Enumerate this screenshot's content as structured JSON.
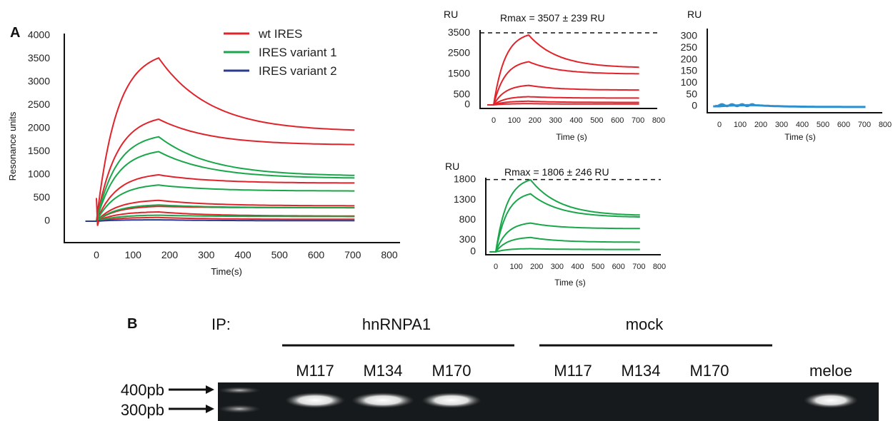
{
  "panel_a": {
    "label": "A",
    "main": {
      "ylabel": "Resonance units",
      "xlabel": "Time(s)",
      "yticks": [
        0,
        500,
        1000,
        1500,
        2000,
        2500,
        3000,
        3500,
        4000
      ],
      "xticks": [
        0,
        100,
        200,
        300,
        400,
        500,
        600,
        700,
        800
      ],
      "legend": [
        {
          "name": "wt IRES",
          "color": "#e0242b"
        },
        {
          "name": "IRES variant 1",
          "color": "#1aa64a"
        },
        {
          "name": "IRES variant 2",
          "color": "#2a3a8f"
        }
      ]
    },
    "inset_wt": {
      "ylabel": "RU",
      "xlabel": "Time (s)",
      "rmax_label": "Rmax = 3507 ± 239 RU",
      "yticks": [
        0,
        500,
        1500,
        2500,
        3500
      ],
      "xticks": [
        0,
        100,
        200,
        300,
        400,
        500,
        600,
        700,
        800
      ]
    },
    "inset_v1": {
      "ylabel": "RU",
      "xlabel": "Time (s)",
      "rmax_label": "Rmax = 1806 ± 246 RU",
      "yticks": [
        0,
        300,
        800,
        1300,
        1800
      ],
      "xticks": [
        0,
        100,
        200,
        300,
        400,
        500,
        600,
        700,
        800
      ]
    },
    "inset_v2": {
      "ylabel": "RU",
      "xlabel": "Time (s)",
      "yticks": [
        0,
        50,
        100,
        150,
        200,
        250,
        300
      ],
      "xticks": [
        0,
        100,
        200,
        300,
        400,
        500,
        600,
        700,
        800
      ]
    }
  },
  "panel_b": {
    "label": "B",
    "ip_label": "IP:",
    "group1": "hnRNPA1",
    "group2": "mock",
    "lanes": [
      "M117",
      "M134",
      "M170",
      "M117",
      "M134",
      "M170",
      "meloe"
    ],
    "markers": [
      "400pb",
      "300pb"
    ]
  },
  "chart_data": [
    {
      "type": "line",
      "title": "",
      "xlabel": "Time(s)",
      "ylabel": "Resonance units",
      "xlim": [
        -50,
        800
      ],
      "ylim": [
        -300,
        4000
      ],
      "inject_end": 170,
      "series_note": "association to t=170 s then dissociation to t=710 s",
      "series": [
        {
          "name": "wt IRES",
          "color": "#e0242b",
          "peaks": [
            3520,
            2200,
            1000,
            450,
            320,
            200,
            80
          ],
          "ends": [
            1930,
            1640,
            820,
            330,
            290,
            110,
            40
          ]
        },
        {
          "name": "IRES variant 1",
          "color": "#1aa64a",
          "peaks": [
            1820,
            1500,
            780,
            350,
            130
          ],
          "ends": [
            970,
            920,
            650,
            290,
            100
          ]
        },
        {
          "name": "IRES variant 2",
          "color": "#2a3a8f",
          "peaks": [
            30
          ],
          "ends": [
            10
          ]
        }
      ]
    },
    {
      "type": "line",
      "title": "Rmax = 3507 ± 239 RU",
      "xlabel": "Time (s)",
      "ylabel": "RU",
      "xlim": [
        -50,
        800
      ],
      "ylim": [
        -100,
        4000
      ],
      "rmax": 3507,
      "series": [
        {
          "name": "",
          "color": "#e0242b",
          "peaks": [
            3400,
            2100,
            950,
            400,
            180,
            60
          ],
          "ends": [
            1800,
            1500,
            720,
            330,
            120,
            40
          ]
        }
      ]
    },
    {
      "type": "line",
      "title": "Rmax = 1806 ± 246 RU",
      "xlabel": "Time (s)",
      "ylabel": "RU",
      "xlim": [
        -50,
        800
      ],
      "ylim": [
        -100,
        2000
      ],
      "rmax": 1806,
      "series": [
        {
          "name": "",
          "color": "#1aa64a",
          "peaks": [
            1800,
            1450,
            720,
            360,
            80
          ],
          "ends": [
            900,
            860,
            580,
            240,
            60
          ]
        }
      ]
    },
    {
      "type": "line",
      "title": "",
      "xlabel": "Time (s)",
      "ylabel": "RU",
      "xlim": [
        -50,
        800
      ],
      "ylim": [
        -20,
        330
      ],
      "series": [
        {
          "name": "",
          "color": "#2b8fd0",
          "peaks": [
            5
          ],
          "ends": [
            -3
          ]
        }
      ]
    }
  ]
}
